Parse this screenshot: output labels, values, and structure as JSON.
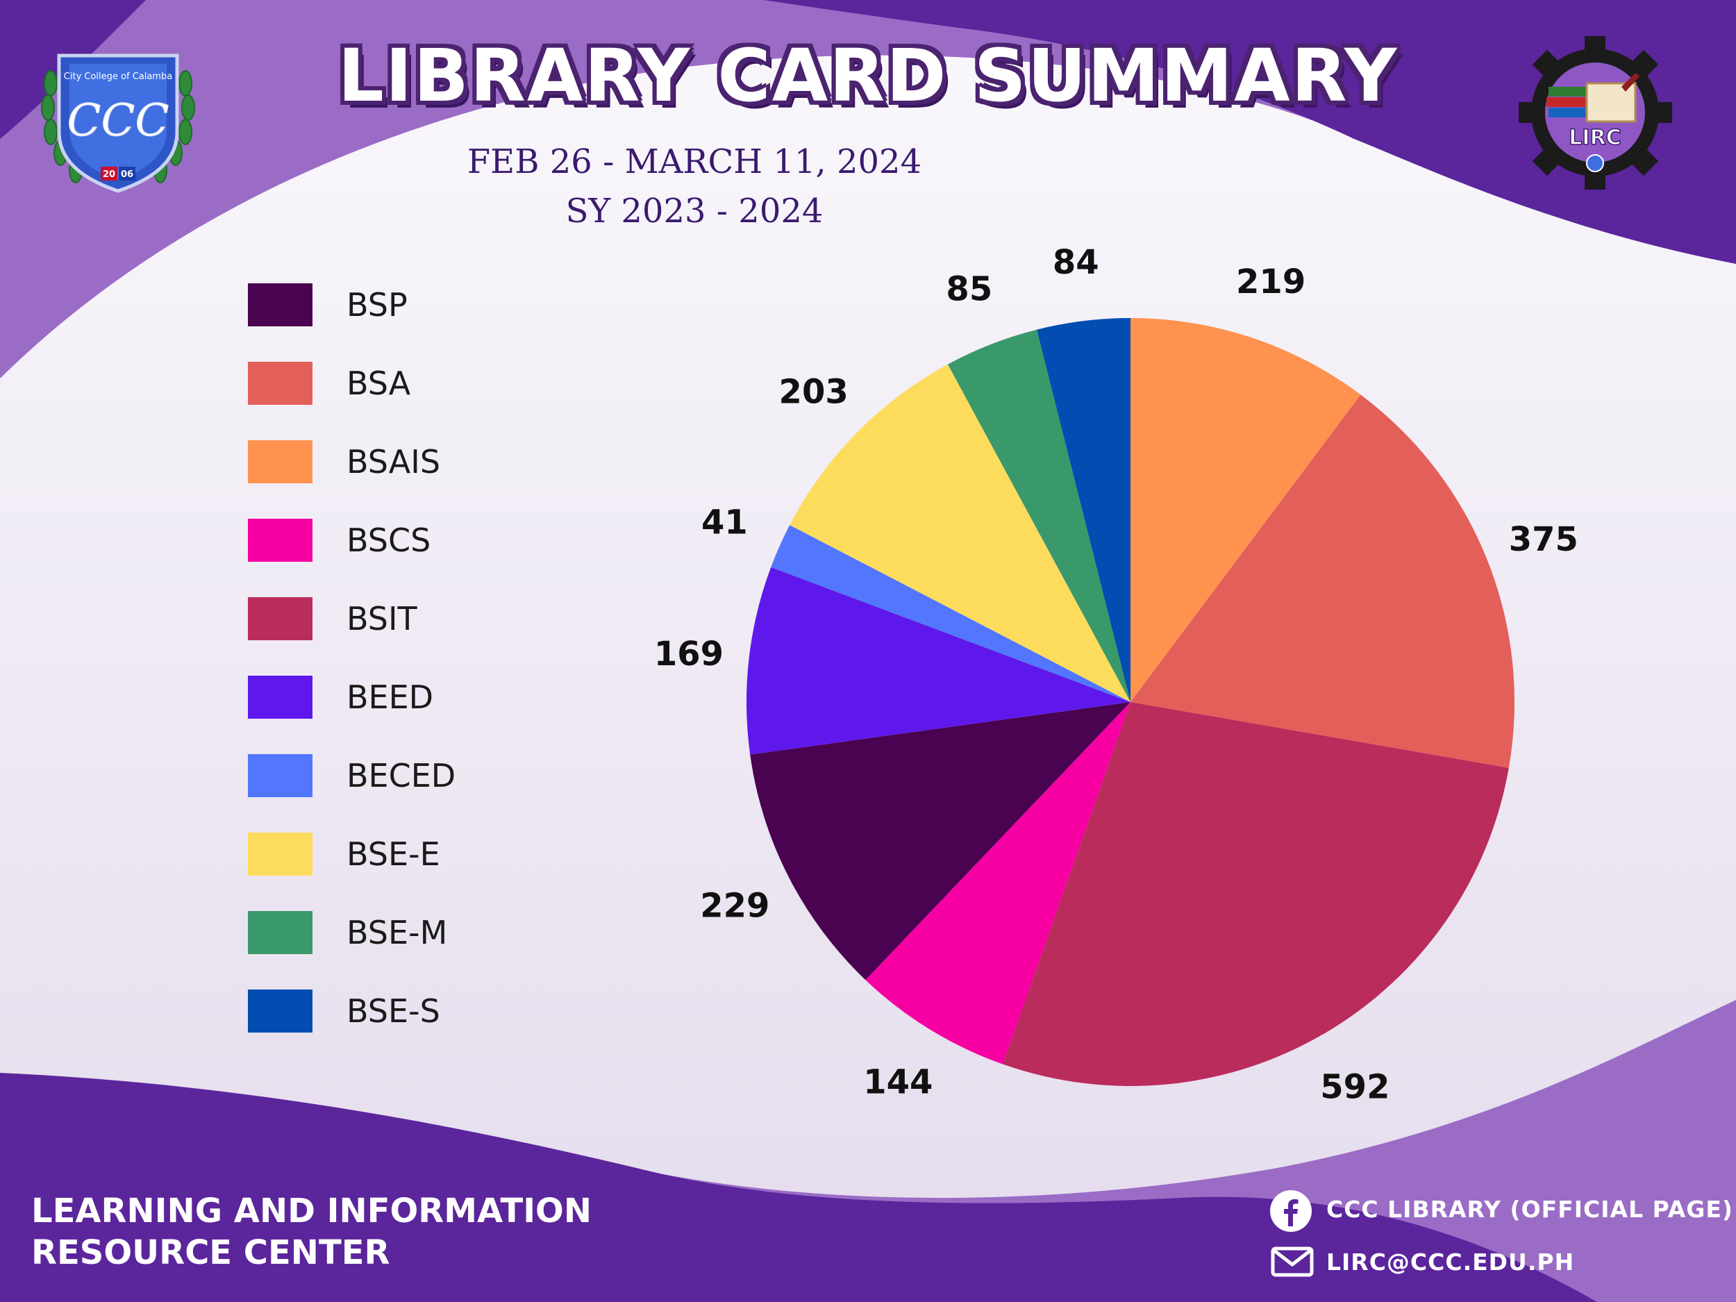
{
  "header": {
    "title": "LIBRARY CARD SUMMARY",
    "date_range": "FEB 26 - MARCH 11, 2024",
    "school_year": "SY 2023 - 2024"
  },
  "logos": {
    "left_logo_text": "City College of Calamba",
    "left_logo_monogram": "CCC",
    "left_logo_year_a": "20",
    "left_logo_year_b": "06",
    "right_logo_text": "LIRC"
  },
  "footer": {
    "org_line1": "LEARNING AND INFORMATION",
    "org_line2": "RESOURCE CENTER",
    "facebook": "CCC LIBRARY (OFFICIAL PAGE)",
    "email": "LIRC@CCC.EDU.PH",
    "facebook_icon": "facebook-icon",
    "email_icon": "mail-icon"
  },
  "colors": {
    "purple_dark": "#5b259c",
    "purple_light": "#9a6cc6"
  },
  "chart_data": {
    "type": "pie",
    "start_angle": "12 o'clock",
    "direction": "clockwise",
    "legend_position": "left",
    "series": [
      {
        "name": "BSP",
        "value": 229,
        "color": "#490350"
      },
      {
        "name": "BSA",
        "value": 375,
        "color": "#e35f5a"
      },
      {
        "name": "BSAIS",
        "value": 219,
        "color": "#fe924e"
      },
      {
        "name": "BSCS",
        "value": 144,
        "color": "#f600a4"
      },
      {
        "name": "BSIT",
        "value": 592,
        "color": "#ba2c5c"
      },
      {
        "name": "BEED",
        "value": 169,
        "color": "#5f18ec"
      },
      {
        "name": "BECED",
        "value": 41,
        "color": "#5277fe"
      },
      {
        "name": "BSE-E",
        "value": 203,
        "color": "#fddc5d"
      },
      {
        "name": "BSE-M",
        "value": 85,
        "color": "#3a996b"
      },
      {
        "name": "BSE-S",
        "value": 84,
        "color": "#024db1"
      }
    ],
    "slice_order": [
      "BSAIS",
      "BSA",
      "BSIT",
      "BSCS",
      "BSP",
      "BEED",
      "BECED",
      "BSE-E",
      "BSE-M",
      "BSE-S"
    ]
  }
}
